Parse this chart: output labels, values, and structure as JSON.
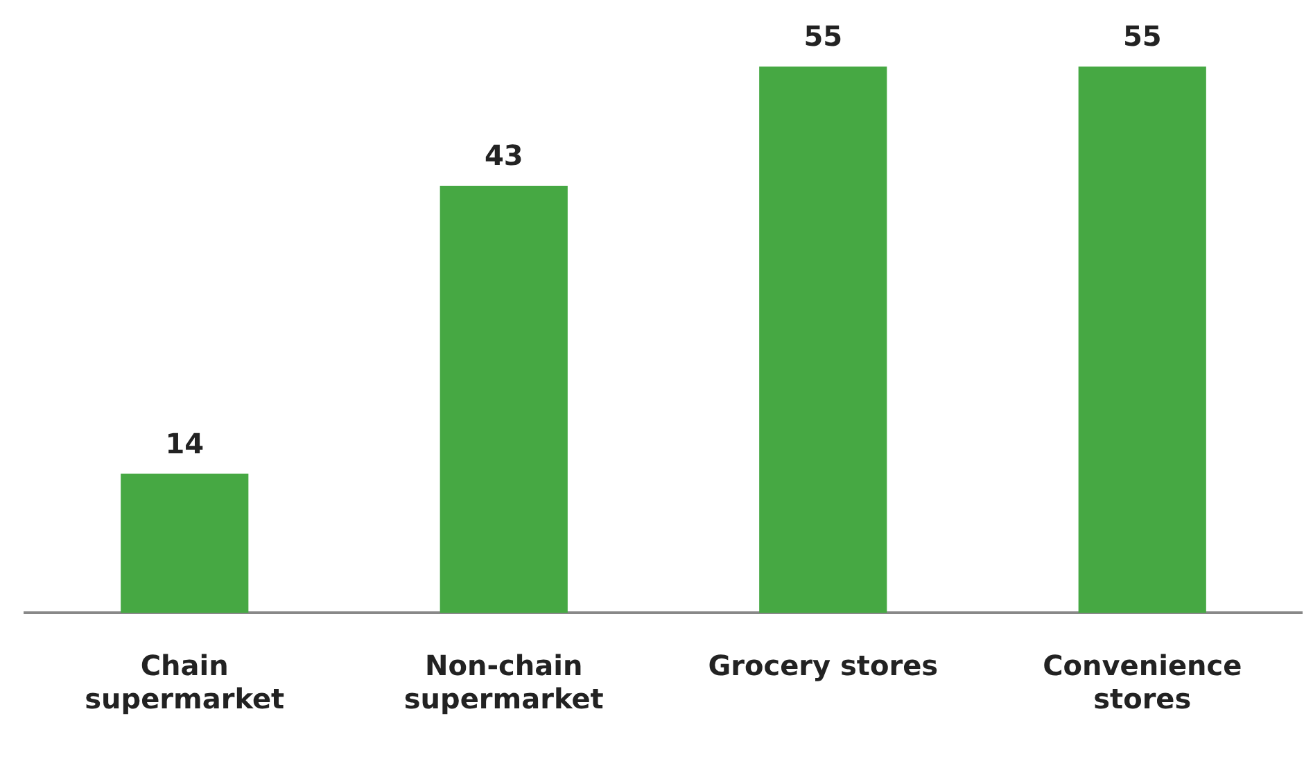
{
  "chart_data": {
    "type": "bar",
    "categories": [
      "Chain supermarket",
      "Non-chain supermarket",
      "Grocery stores",
      "Convenience stores"
    ],
    "values": [
      14,
      43,
      55,
      55
    ],
    "color": "#46a843",
    "ylim": [
      0,
      55
    ],
    "data_labels": true,
    "grid": false,
    "legend": false,
    "tick_labels": "x"
  }
}
